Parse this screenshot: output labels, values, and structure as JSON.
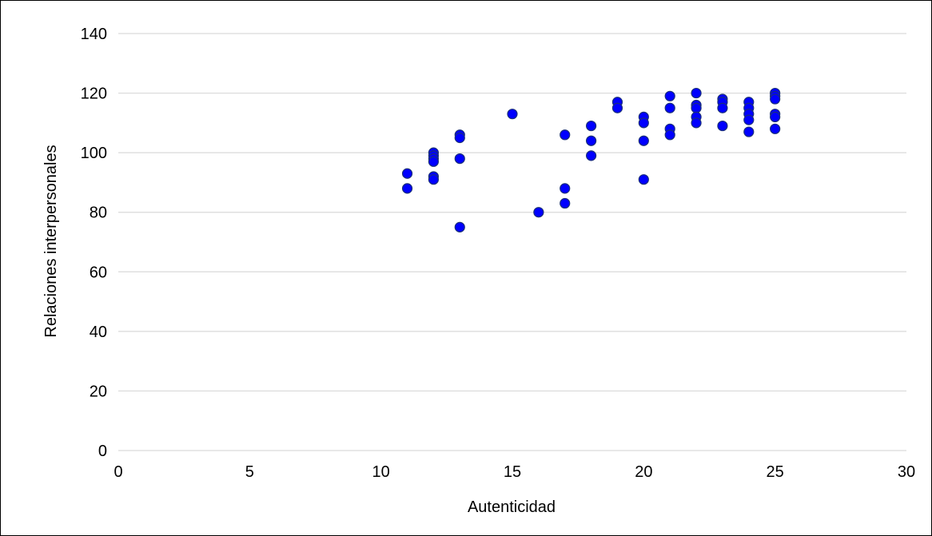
{
  "chart_data": {
    "type": "scatter",
    "title": "",
    "xlabel": "Autenticidad",
    "ylabel": "Relaciones interpersonales",
    "xlim": [
      0,
      30
    ],
    "ylim": [
      0,
      140
    ],
    "xticks": [
      0,
      5,
      10,
      15,
      20,
      25,
      30
    ],
    "yticks": [
      0,
      20,
      40,
      60,
      80,
      100,
      120,
      140
    ],
    "grid": "horizontal",
    "marker_color": "#0000ff",
    "marker_edge_color": "#1a2f7a",
    "series": [
      {
        "points": [
          [
            11,
            93
          ],
          [
            11,
            88
          ],
          [
            12,
            100
          ],
          [
            12,
            99
          ],
          [
            12,
            98
          ],
          [
            12,
            97
          ],
          [
            12,
            92
          ],
          [
            12,
            91
          ],
          [
            13,
            106
          ],
          [
            13,
            105
          ],
          [
            13,
            98
          ],
          [
            13,
            75
          ],
          [
            15,
            113
          ],
          [
            16,
            80
          ],
          [
            17,
            106
          ],
          [
            17,
            88
          ],
          [
            17,
            83
          ],
          [
            18,
            109
          ],
          [
            18,
            104
          ],
          [
            18,
            99
          ],
          [
            19,
            117
          ],
          [
            19,
            115
          ],
          [
            20,
            112
          ],
          [
            20,
            110
          ],
          [
            20,
            104
          ],
          [
            20,
            91
          ],
          [
            21,
            119
          ],
          [
            21,
            115
          ],
          [
            21,
            108
          ],
          [
            21,
            106
          ],
          [
            22,
            120
          ],
          [
            22,
            116
          ],
          [
            22,
            115
          ],
          [
            22,
            112
          ],
          [
            22,
            110
          ],
          [
            23,
            118
          ],
          [
            23,
            117
          ],
          [
            23,
            115
          ],
          [
            23,
            109
          ],
          [
            24,
            117
          ],
          [
            24,
            115
          ],
          [
            24,
            113
          ],
          [
            24,
            111
          ],
          [
            24,
            107
          ],
          [
            25,
            120
          ],
          [
            25,
            119
          ],
          [
            25,
            118
          ],
          [
            25,
            113
          ],
          [
            25,
            112
          ],
          [
            25,
            108
          ]
        ]
      }
    ]
  }
}
